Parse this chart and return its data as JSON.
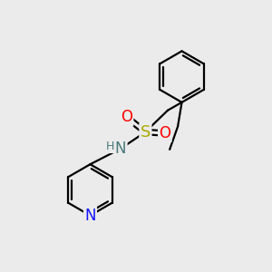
{
  "background_color": "#ebebeb",
  "figsize": [
    3.0,
    3.0
  ],
  "dpi": 100,
  "bond_color": "#000000",
  "bond_width": 1.6,
  "atom_colors": {
    "N_amine": "#4a7a7a",
    "N_pyridine": "#1414ff",
    "O": "#ff0000",
    "S": "#aaaa00",
    "H": "#4a7a7a",
    "C": "#000000"
  },
  "font_size_atom": 11,
  "font_size_H": 9
}
